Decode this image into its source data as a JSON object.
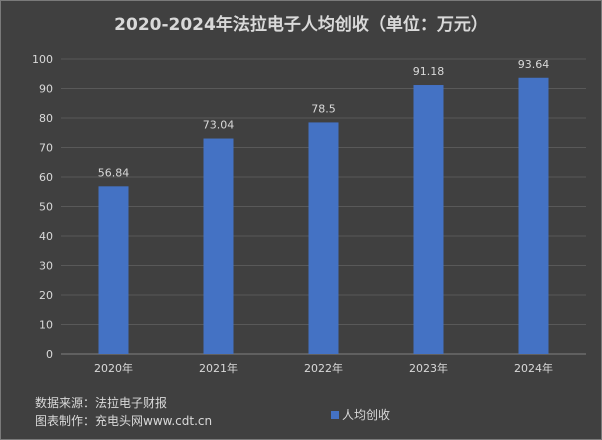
{
  "chart_data": {
    "type": "bar",
    "title": "2020-2024年法拉电子人均创收（单位：万元）",
    "categories": [
      "2020年",
      "2021年",
      "2022年",
      "2023年",
      "2024年"
    ],
    "series": [
      {
        "name": "人均创收",
        "values": [
          56.84,
          73.04,
          78.5,
          91.18,
          93.64
        ],
        "color": "#4472c4"
      }
    ],
    "data_labels": [
      "56.84",
      "73.04",
      "78.5",
      "91.18",
      "93.64"
    ],
    "ylim": [
      0,
      100
    ],
    "yticks": [
      0,
      10,
      20,
      30,
      40,
      50,
      60,
      70,
      80,
      90,
      100
    ],
    "grid": true,
    "legend_position": "bottom"
  },
  "footer": {
    "source": "数据来源：法拉电子财报",
    "maker": "图表制作：充电头网www.cdt.cn"
  },
  "colors": {
    "background": "#404040",
    "grid": "#595959",
    "text": "#d9d9d9",
    "bar": "#4472c4"
  }
}
